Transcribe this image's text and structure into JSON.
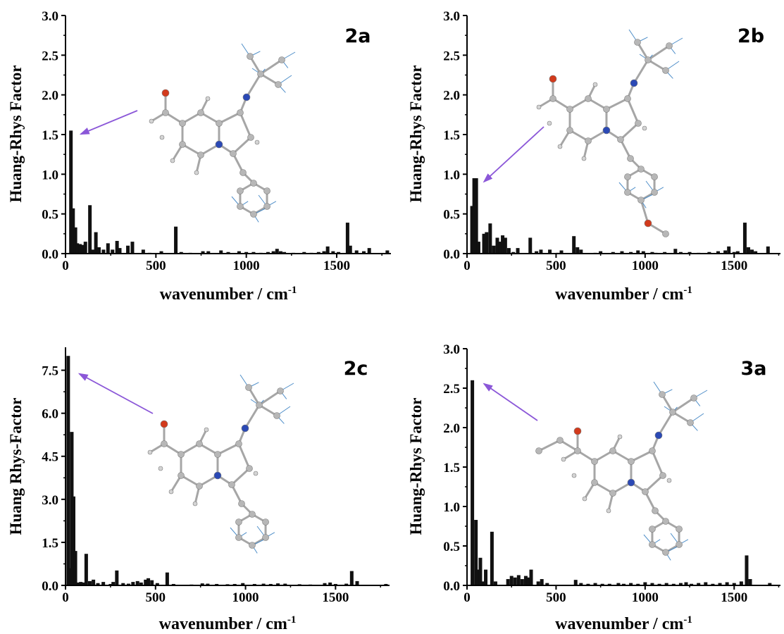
{
  "chart_data": [
    {
      "type": "bar",
      "panel_label": "2a",
      "xlabel": "wavenumber / cm",
      "xlabel_sup": "-1",
      "ylabel": "Huang-Rhys Factor",
      "xlim": [
        0,
        1800
      ],
      "ylim": [
        0,
        3.0
      ],
      "x_ticks": [
        0,
        500,
        1000,
        1500
      ],
      "y_ticks": [
        "0.0",
        "0.5",
        "1.0",
        "1.5",
        "2.0",
        "2.5",
        "3.0"
      ],
      "arrow_target": [
        30,
        1.55
      ],
      "bars": [
        [
          30,
          1.55
        ],
        [
          42,
          0.57
        ],
        [
          55,
          0.33
        ],
        [
          65,
          0.13
        ],
        [
          80,
          0.12
        ],
        [
          95,
          0.11
        ],
        [
          110,
          0.15
        ],
        [
          135,
          0.61
        ],
        [
          150,
          0.05
        ],
        [
          168,
          0.27
        ],
        [
          185,
          0.08
        ],
        [
          210,
          0.05
        ],
        [
          235,
          0.13
        ],
        [
          260,
          0.05
        ],
        [
          285,
          0.16
        ],
        [
          300,
          0.07
        ],
        [
          345,
          0.1
        ],
        [
          370,
          0.15
        ],
        [
          430,
          0.05
        ],
        [
          465,
          0.01
        ],
        [
          530,
          0.03
        ],
        [
          610,
          0.34
        ],
        [
          640,
          0.02
        ],
        [
          690,
          0.01
        ],
        [
          760,
          0.03
        ],
        [
          790,
          0.03
        ],
        [
          860,
          0.04
        ],
        [
          900,
          0.02
        ],
        [
          960,
          0.03
        ],
        [
          1000,
          0.02
        ],
        [
          1040,
          0.02
        ],
        [
          1080,
          0.01
        ],
        [
          1120,
          0.02
        ],
        [
          1150,
          0.03
        ],
        [
          1170,
          0.06
        ],
        [
          1190,
          0.03
        ],
        [
          1210,
          0.02
        ],
        [
          1260,
          0.01
        ],
        [
          1320,
          0.02
        ],
        [
          1360,
          0.01
        ],
        [
          1400,
          0.02
        ],
        [
          1430,
          0.03
        ],
        [
          1450,
          0.09
        ],
        [
          1480,
          0.03
        ],
        [
          1510,
          0.02
        ],
        [
          1560,
          0.39
        ],
        [
          1575,
          0.1
        ],
        [
          1610,
          0.04
        ],
        [
          1650,
          0.03
        ],
        [
          1680,
          0.07
        ],
        [
          1780,
          0.04
        ]
      ]
    },
    {
      "type": "bar",
      "panel_label": "2b",
      "xlabel": "wavenumber / cm",
      "xlabel_sup": "-1",
      "ylabel": "Huang-Rhys Factor",
      "xlim": [
        0,
        1760
      ],
      "ylim": [
        0,
        3.0
      ],
      "x_ticks": [
        0,
        500,
        1000,
        1500
      ],
      "y_ticks": [
        "0.0",
        "0.5",
        "1.0",
        "1.5",
        "2.0",
        "2.5",
        "3.0"
      ],
      "arrow_target": [
        40,
        0.95
      ],
      "bars": [
        [
          28,
          0.6
        ],
        [
          40,
          0.95
        ],
        [
          52,
          0.95
        ],
        [
          65,
          0.15
        ],
        [
          95,
          0.25
        ],
        [
          110,
          0.27
        ],
        [
          130,
          0.38
        ],
        [
          150,
          0.1
        ],
        [
          170,
          0.2
        ],
        [
          185,
          0.15
        ],
        [
          200,
          0.23
        ],
        [
          215,
          0.2
        ],
        [
          235,
          0.07
        ],
        [
          260,
          0.02
        ],
        [
          285,
          0.07
        ],
        [
          355,
          0.2
        ],
        [
          390,
          0.03
        ],
        [
          415,
          0.05
        ],
        [
          465,
          0.05
        ],
        [
          510,
          0.01
        ],
        [
          530,
          0.04
        ],
        [
          600,
          0.22
        ],
        [
          620,
          0.08
        ],
        [
          640,
          0.05
        ],
        [
          720,
          0.01
        ],
        [
          750,
          0.03
        ],
        [
          820,
          0.02
        ],
        [
          870,
          0.03
        ],
        [
          920,
          0.02
        ],
        [
          960,
          0.04
        ],
        [
          990,
          0.03
        ],
        [
          1040,
          0.02
        ],
        [
          1060,
          0.01
        ],
        [
          1110,
          0.02
        ],
        [
          1170,
          0.06
        ],
        [
          1200,
          0.02
        ],
        [
          1250,
          0.02
        ],
        [
          1300,
          0.01
        ],
        [
          1360,
          0.02
        ],
        [
          1410,
          0.03
        ],
        [
          1450,
          0.04
        ],
        [
          1470,
          0.09
        ],
        [
          1500,
          0.02
        ],
        [
          1520,
          0.03
        ],
        [
          1560,
          0.39
        ],
        [
          1580,
          0.08
        ],
        [
          1600,
          0.05
        ],
        [
          1620,
          0.03
        ],
        [
          1690,
          0.09
        ]
      ]
    },
    {
      "type": "bar",
      "panel_label": "2c",
      "xlabel": "wavenumber / cm",
      "xlabel_sup": "-1",
      "ylabel": "Huang Rhys-Factor",
      "xlim": [
        0,
        1800
      ],
      "ylim": [
        0,
        8.3
      ],
      "x_ticks": [
        0,
        500,
        1000,
        1500
      ],
      "y_ticks": [
        "0.0",
        "1.5",
        "3.0",
        "4.5",
        "6.0",
        "7.5"
      ],
      "y_tick_values": [
        0,
        1.5,
        3.0,
        4.5,
        6.0,
        7.5
      ],
      "arrow_target": [
        22,
        7.5
      ],
      "bars": [
        [
          15,
          8.0
        ],
        [
          25,
          0.6
        ],
        [
          35,
          5.35
        ],
        [
          45,
          3.1
        ],
        [
          55,
          1.2
        ],
        [
          70,
          0.1
        ],
        [
          85,
          0.12
        ],
        [
          100,
          0.1
        ],
        [
          115,
          1.1
        ],
        [
          135,
          0.15
        ],
        [
          155,
          0.2
        ],
        [
          180,
          0.08
        ],
        [
          210,
          0.12
        ],
        [
          250,
          0.05
        ],
        [
          265,
          0.12
        ],
        [
          285,
          0.52
        ],
        [
          320,
          0.08
        ],
        [
          350,
          0.06
        ],
        [
          375,
          0.12
        ],
        [
          400,
          0.15
        ],
        [
          420,
          0.1
        ],
        [
          445,
          0.2
        ],
        [
          460,
          0.25
        ],
        [
          480,
          0.18
        ],
        [
          510,
          0.08
        ],
        [
          565,
          0.45
        ],
        [
          600,
          0.05
        ],
        [
          700,
          0.03
        ],
        [
          760,
          0.07
        ],
        [
          790,
          0.06
        ],
        [
          840,
          0.05
        ],
        [
          900,
          0.04
        ],
        [
          940,
          0.05
        ],
        [
          985,
          0.08
        ],
        [
          1050,
          0.05
        ],
        [
          1100,
          0.06
        ],
        [
          1140,
          0.05
        ],
        [
          1180,
          0.07
        ],
        [
          1220,
          0.06
        ],
        [
          1300,
          0.04
        ],
        [
          1360,
          0.03
        ],
        [
          1440,
          0.08
        ],
        [
          1470,
          0.1
        ],
        [
          1500,
          0.05
        ],
        [
          1560,
          0.06
        ],
        [
          1590,
          0.5
        ],
        [
          1620,
          0.15
        ],
        [
          1780,
          0.05
        ]
      ]
    },
    {
      "type": "bar",
      "panel_label": "3a",
      "xlabel": "wavenumber / cm",
      "xlabel_sup": "-1",
      "ylabel": "Huang-Rhys Factor",
      "xlim": [
        0,
        1760
      ],
      "ylim": [
        0,
        3.0
      ],
      "x_ticks": [
        0,
        500,
        1000,
        1500
      ],
      "y_ticks": [
        "0.0",
        "0.5",
        "1.0",
        "1.5",
        "2.0",
        "2.5",
        "3.0"
      ],
      "arrow_target": [
        40,
        2.6
      ],
      "bars": [
        [
          30,
          2.6
        ],
        [
          50,
          0.83
        ],
        [
          60,
          0.2
        ],
        [
          75,
          0.35
        ],
        [
          90,
          0.05
        ],
        [
          105,
          0.2
        ],
        [
          140,
          0.68
        ],
        [
          160,
          0.05
        ],
        [
          230,
          0.08
        ],
        [
          250,
          0.12
        ],
        [
          270,
          0.1
        ],
        [
          290,
          0.13
        ],
        [
          310,
          0.08
        ],
        [
          330,
          0.12
        ],
        [
          345,
          0.1
        ],
        [
          360,
          0.2
        ],
        [
          400,
          0.05
        ],
        [
          420,
          0.08
        ],
        [
          450,
          0.03
        ],
        [
          610,
          0.07
        ],
        [
          640,
          0.03
        ],
        [
          680,
          0.02
        ],
        [
          720,
          0.03
        ],
        [
          760,
          0.02
        ],
        [
          800,
          0.02
        ],
        [
          850,
          0.03
        ],
        [
          880,
          0.02
        ],
        [
          920,
          0.03
        ],
        [
          960,
          0.02
        ],
        [
          1000,
          0.04
        ],
        [
          1040,
          0.03
        ],
        [
          1080,
          0.02
        ],
        [
          1120,
          0.03
        ],
        [
          1160,
          0.02
        ],
        [
          1200,
          0.03
        ],
        [
          1230,
          0.04
        ],
        [
          1260,
          0.02
        ],
        [
          1300,
          0.03
        ],
        [
          1340,
          0.04
        ],
        [
          1380,
          0.02
        ],
        [
          1420,
          0.03
        ],
        [
          1460,
          0.04
        ],
        [
          1500,
          0.03
        ],
        [
          1540,
          0.05
        ],
        [
          1570,
          0.38
        ],
        [
          1590,
          0.08
        ],
        [
          1700,
          0.03
        ]
      ]
    }
  ],
  "colors": {
    "bar": "#111111",
    "arrow": "#8b57d8",
    "atom_carbon": "#b7b7b7",
    "atom_oxygen": "#d23a1c",
    "atom_nitrogen": "#2b49b5",
    "bond": "#a6a6a6",
    "vector": "#4d8dc8"
  },
  "icons": [
    "molecule-2a-image",
    "molecule-2b-image",
    "molecule-2c-image",
    "molecule-3a-image"
  ]
}
